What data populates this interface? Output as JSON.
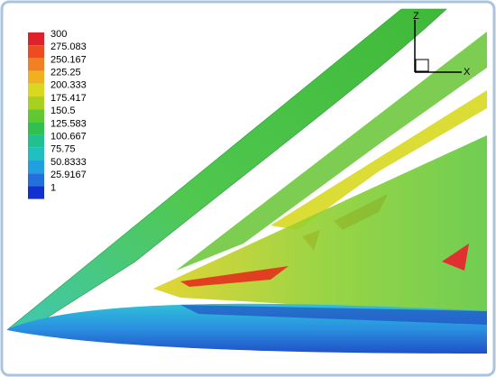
{
  "legend": {
    "labels": [
      "300",
      "275.083",
      "250.167",
      "225.25",
      "200.333",
      "175.417",
      "150.5",
      "125.583",
      "100.667",
      "75.75",
      "50.8333",
      "25.9167",
      "1"
    ]
  },
  "axes": {
    "z_label": "Z",
    "x_label": "X"
  }
}
